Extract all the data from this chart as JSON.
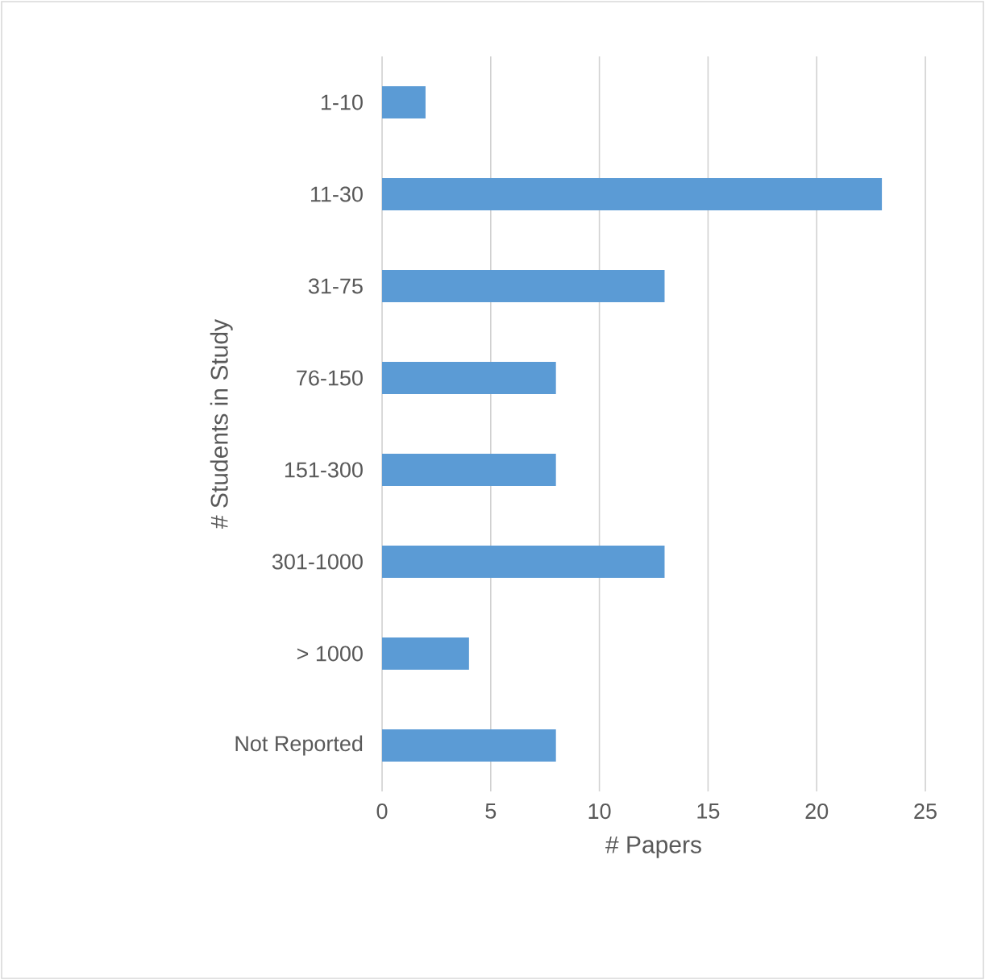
{
  "chart_data": {
    "type": "bar",
    "orientation": "horizontal",
    "categories": [
      "1-10",
      "11-30",
      "31-75",
      "76-150",
      "151-300",
      "301-1000",
      "> 1000",
      "Not Reported"
    ],
    "values": [
      2,
      23,
      13,
      8,
      8,
      13,
      4,
      8
    ],
    "color": "#5b9bd5",
    "xlabel": "# Papers",
    "ylabel": "# Students in Study",
    "xlim": [
      0,
      25
    ],
    "xticks": [
      0,
      5,
      10,
      15,
      20,
      25
    ],
    "grid": "x"
  }
}
